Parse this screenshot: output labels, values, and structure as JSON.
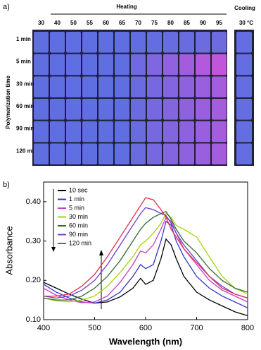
{
  "panel_a": {
    "label": "a)",
    "heating": "Heating",
    "cooling": "Cooling",
    "temperatures": [
      "30",
      "40",
      "50",
      "55",
      "60",
      "65",
      "70",
      "75",
      "80",
      "85",
      "90",
      "95"
    ],
    "cooling_temperature": "30 °C",
    "y_label": "Polymerization time",
    "rows": [
      "1 min",
      "5 min",
      "30 min",
      "60 min",
      "90 min",
      "120 min"
    ]
  },
  "chart_data": {
    "type": "line",
    "label": "b)",
    "x_label": "Wavelength (nm)",
    "y_label": "Absorbance",
    "x": [
      400,
      425,
      450,
      475,
      500,
      525,
      550,
      575,
      590,
      600,
      615,
      630,
      640,
      650,
      660,
      675,
      700,
      725,
      750,
      775,
      800
    ],
    "xlim": [
      400,
      800
    ],
    "xticks": [
      400,
      500,
      600,
      700,
      800
    ],
    "ylim": [
      0.1,
      0.45
    ],
    "yticks": [
      {
        "value": 0.1,
        "label": "0.10"
      },
      {
        "value": 0.2,
        "label": "0.20"
      },
      {
        "value": 0.3,
        "label": "0.30"
      },
      {
        "value": 0.4,
        "label": "0.40"
      }
    ],
    "series": [
      {
        "name": "10 sec",
        "color": "#000000",
        "values": [
          0.195,
          0.18,
          0.165,
          0.152,
          0.142,
          0.145,
          0.158,
          0.18,
          0.205,
          0.19,
          0.2,
          0.255,
          0.305,
          0.29,
          0.255,
          0.21,
          0.17,
          0.15,
          0.135,
          0.12,
          0.11
        ]
      },
      {
        "name": "1 min",
        "color": "#3535c8",
        "values": [
          0.19,
          0.17,
          0.155,
          0.145,
          0.142,
          0.15,
          0.17,
          0.21,
          0.24,
          0.23,
          0.24,
          0.3,
          0.35,
          0.34,
          0.3,
          0.26,
          0.21,
          0.18,
          0.16,
          0.145,
          0.13
        ]
      },
      {
        "name": "5 min",
        "color": "#c83cc8",
        "values": [
          0.18,
          0.162,
          0.15,
          0.143,
          0.145,
          0.16,
          0.195,
          0.24,
          0.275,
          0.27,
          0.29,
          0.33,
          0.36,
          0.35,
          0.32,
          0.28,
          0.24,
          0.2,
          0.175,
          0.16,
          0.145
        ]
      },
      {
        "name": "30 min",
        "color": "#a6d20a",
        "values": [
          0.155,
          0.148,
          0.145,
          0.15,
          0.16,
          0.185,
          0.22,
          0.26,
          0.29,
          0.3,
          0.32,
          0.345,
          0.37,
          0.36,
          0.34,
          0.33,
          0.31,
          0.26,
          0.21,
          0.18,
          0.165
        ]
      },
      {
        "name": "60 min",
        "color": "#2e6a2e",
        "values": [
          0.155,
          0.15,
          0.15,
          0.16,
          0.18,
          0.21,
          0.25,
          0.3,
          0.33,
          0.345,
          0.36,
          0.37,
          0.375,
          0.355,
          0.33,
          0.3,
          0.27,
          0.23,
          0.2,
          0.18,
          0.17
        ]
      },
      {
        "name": "90 min",
        "color": "#6a3cd0",
        "values": [
          0.16,
          0.155,
          0.16,
          0.175,
          0.2,
          0.24,
          0.29,
          0.34,
          0.37,
          0.385,
          0.38,
          0.37,
          0.365,
          0.345,
          0.32,
          0.29,
          0.25,
          0.21,
          0.185,
          0.165,
          0.155
        ]
      },
      {
        "name": "120 min",
        "color": "#e0304e",
        "values": [
          0.16,
          0.16,
          0.165,
          0.185,
          0.215,
          0.26,
          0.31,
          0.36,
          0.39,
          0.41,
          0.405,
          0.38,
          0.36,
          0.33,
          0.31,
          0.28,
          0.245,
          0.21,
          0.18,
          0.165,
          0.155
        ]
      }
    ]
  }
}
